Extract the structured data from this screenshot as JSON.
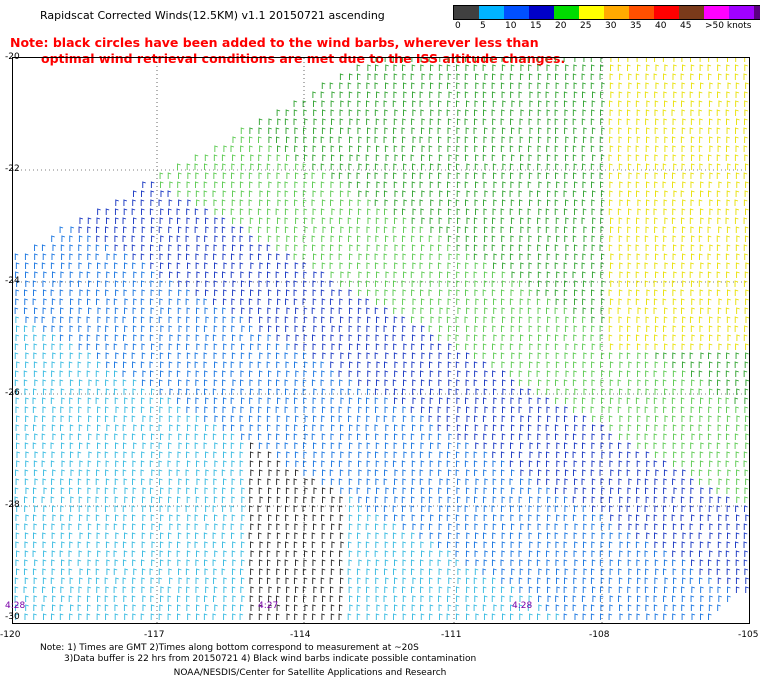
{
  "title": "Rapidscat Corrected Winds(12.5KM) v1.1 20150721 ascending",
  "note": {
    "line1": "Note: black circles have been added to the wind barbs, wherever less than",
    "line2": "optimal wind retrieval conditions are met due to the ISS altitude changes."
  },
  "scale": {
    "colors": [
      "#404040",
      "#00b4ff",
      "#0050ff",
      "#0000c8",
      "#00dc00",
      "#ffff00",
      "#ffaa00",
      "#ff5000",
      "#ff0000",
      "#7a3a1a",
      "#ff00ff",
      "#a000ff",
      "#5a0080"
    ],
    "labels": [
      "0",
      "5",
      "10",
      "15",
      "20",
      "25",
      "30",
      "35",
      "40",
      "45",
      ">50 knots"
    ]
  },
  "axes": {
    "y_labels": [
      "-20",
      "-22",
      "-24",
      "-26",
      "-28",
      "-30"
    ],
    "x_labels": [
      "-120",
      "-117",
      "-114",
      "-111",
      "-108",
      "-105"
    ]
  },
  "time_labels": [
    "4:28",
    "4:27",
    "4:28"
  ],
  "footnotes": {
    "line1": "Note: 1) Times are GMT 2)Times along bottom correspond to measurement at ~20S",
    "line2": "3)Data buffer is 22 hrs from 20150721 4) Black wind barbs indicate possible contamination"
  },
  "credit": "NOAA/NESDIS/Center for Satellite Applications and Research"
}
